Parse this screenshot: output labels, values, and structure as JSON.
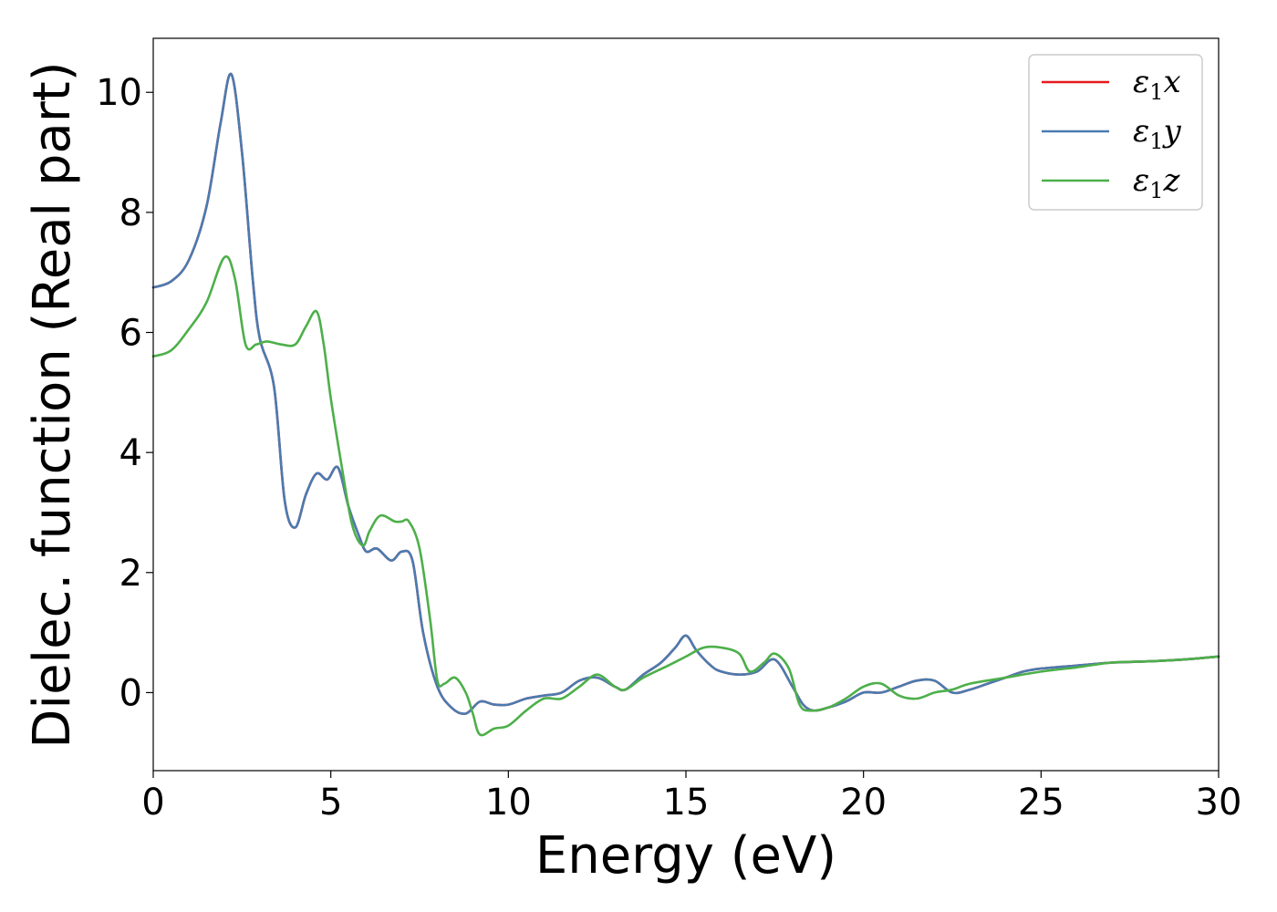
{
  "chart_data": {
    "type": "line",
    "xlabel": "Energy (eV)",
    "ylabel": "Dielec. function (Real part)",
    "xlim": [
      0,
      30
    ],
    "ylim": [
      -1.3,
      10.9
    ],
    "xticks": [
      0,
      5,
      10,
      15,
      20,
      25,
      30
    ],
    "yticks": [
      0,
      2,
      4,
      6,
      8,
      10
    ],
    "grid": false,
    "legend": "top-right",
    "series": [
      {
        "name": "ε1x",
        "label_base": "ε",
        "label_sub": "1",
        "label_var": "x",
        "color": "#e41a1c",
        "x": [
          0,
          0.5,
          1.0,
          1.5,
          1.9,
          2.2,
          2.5,
          2.8,
          3.0,
          3.4,
          3.7,
          4.0,
          4.3,
          4.6,
          4.9,
          5.2,
          5.5,
          5.8,
          6.0,
          6.3,
          6.7,
          7.0,
          7.3,
          7.6,
          8.0,
          8.4,
          8.8,
          9.2,
          9.6,
          10.0,
          10.5,
          11.0,
          11.5,
          12.0,
          12.5,
          13.0,
          13.3,
          13.8,
          14.3,
          14.7,
          15.0,
          15.3,
          15.7,
          16.0,
          16.5,
          17.0,
          17.5,
          18.0,
          18.3,
          18.6,
          19.0,
          19.5,
          20.0,
          20.5,
          21.0,
          21.5,
          22.0,
          22.5,
          23.0,
          23.5,
          24.0,
          24.5,
          25.0,
          26.0,
          27.0,
          28.0,
          29.0,
          30.0
        ],
        "values": [
          6.75,
          6.85,
          7.2,
          8.1,
          9.5,
          10.3,
          9.0,
          6.9,
          5.9,
          5.1,
          3.2,
          2.75,
          3.3,
          3.65,
          3.55,
          3.75,
          3.1,
          2.6,
          2.35,
          2.4,
          2.2,
          2.35,
          2.2,
          1.0,
          0.1,
          -0.25,
          -0.35,
          -0.15,
          -0.2,
          -0.2,
          -0.1,
          -0.05,
          0.0,
          0.2,
          0.25,
          0.1,
          0.05,
          0.3,
          0.5,
          0.75,
          0.95,
          0.7,
          0.45,
          0.35,
          0.3,
          0.35,
          0.55,
          0.1,
          -0.2,
          -0.3,
          -0.25,
          -0.15,
          0.0,
          0.0,
          0.1,
          0.2,
          0.2,
          0.0,
          0.05,
          0.15,
          0.25,
          0.35,
          0.4,
          0.45,
          0.5,
          0.52,
          0.55,
          0.6
        ]
      },
      {
        "name": "ε1y",
        "label_base": "ε",
        "label_sub": "1",
        "label_var": "y",
        "color": "#4a7bb0",
        "x": [
          0,
          0.5,
          1.0,
          1.5,
          1.9,
          2.2,
          2.5,
          2.8,
          3.0,
          3.4,
          3.7,
          4.0,
          4.3,
          4.6,
          4.9,
          5.2,
          5.5,
          5.8,
          6.0,
          6.3,
          6.7,
          7.0,
          7.3,
          7.6,
          8.0,
          8.4,
          8.8,
          9.2,
          9.6,
          10.0,
          10.5,
          11.0,
          11.5,
          12.0,
          12.5,
          13.0,
          13.3,
          13.8,
          14.3,
          14.7,
          15.0,
          15.3,
          15.7,
          16.0,
          16.5,
          17.0,
          17.5,
          18.0,
          18.3,
          18.6,
          19.0,
          19.5,
          20.0,
          20.5,
          21.0,
          21.5,
          22.0,
          22.5,
          23.0,
          23.5,
          24.0,
          24.5,
          25.0,
          26.0,
          27.0,
          28.0,
          29.0,
          30.0
        ],
        "values": [
          6.75,
          6.85,
          7.2,
          8.1,
          9.5,
          10.3,
          9.0,
          6.9,
          5.9,
          5.1,
          3.2,
          2.75,
          3.3,
          3.65,
          3.55,
          3.75,
          3.1,
          2.6,
          2.35,
          2.4,
          2.2,
          2.35,
          2.2,
          1.0,
          0.1,
          -0.25,
          -0.35,
          -0.15,
          -0.2,
          -0.2,
          -0.1,
          -0.05,
          0.0,
          0.2,
          0.25,
          0.1,
          0.05,
          0.3,
          0.5,
          0.75,
          0.95,
          0.7,
          0.45,
          0.35,
          0.3,
          0.35,
          0.55,
          0.1,
          -0.2,
          -0.3,
          -0.25,
          -0.15,
          0.0,
          0.0,
          0.1,
          0.2,
          0.2,
          0.0,
          0.05,
          0.15,
          0.25,
          0.35,
          0.4,
          0.45,
          0.5,
          0.52,
          0.55,
          0.6
        ]
      },
      {
        "name": "ε1z",
        "label_base": "ε",
        "label_sub": "1",
        "label_var": "z",
        "color": "#4daf4a",
        "x": [
          0,
          0.5,
          1.0,
          1.5,
          2.0,
          2.3,
          2.6,
          2.9,
          3.2,
          3.6,
          4.0,
          4.3,
          4.6,
          4.8,
          5.0,
          5.3,
          5.6,
          5.9,
          6.1,
          6.4,
          6.8,
          7.0,
          7.2,
          7.5,
          7.8,
          8.0,
          8.2,
          8.5,
          8.8,
          9.0,
          9.2,
          9.6,
          10.0,
          10.5,
          11.0,
          11.5,
          12.0,
          12.5,
          13.0,
          13.3,
          13.8,
          14.5,
          15.0,
          15.5,
          16.0,
          16.5,
          16.8,
          17.2,
          17.5,
          17.9,
          18.2,
          18.5,
          19.0,
          19.5,
          20.0,
          20.5,
          21.0,
          21.5,
          22.0,
          22.5,
          23.0,
          24.0,
          25.0,
          26.0,
          27.0,
          28.0,
          29.0,
          30.0
        ],
        "values": [
          5.6,
          5.7,
          6.05,
          6.5,
          7.25,
          6.9,
          5.8,
          5.8,
          5.85,
          5.8,
          5.8,
          6.1,
          6.35,
          5.8,
          4.9,
          3.8,
          2.8,
          2.45,
          2.7,
          2.95,
          2.85,
          2.85,
          2.85,
          2.4,
          1.2,
          0.2,
          0.15,
          0.25,
          0.0,
          -0.35,
          -0.7,
          -0.6,
          -0.55,
          -0.3,
          -0.1,
          -0.1,
          0.1,
          0.3,
          0.1,
          0.05,
          0.25,
          0.45,
          0.6,
          0.75,
          0.75,
          0.65,
          0.35,
          0.5,
          0.65,
          0.4,
          -0.2,
          -0.3,
          -0.25,
          -0.1,
          0.1,
          0.15,
          -0.05,
          -0.1,
          0.0,
          0.05,
          0.15,
          0.25,
          0.35,
          0.42,
          0.5,
          0.52,
          0.55,
          0.6
        ]
      }
    ]
  }
}
